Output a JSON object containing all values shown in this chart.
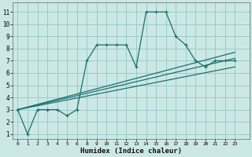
{
  "xlabel": "Humidex (Indice chaleur)",
  "bg_color": "#cce8e5",
  "grid_color": "#99cccc",
  "line_color": "#1a7070",
  "ytick_vals": [
    1,
    2,
    3,
    4,
    5,
    6,
    7,
    8,
    9,
    10,
    11
  ],
  "ylim": [
    0.6,
    11.8
  ],
  "xlim": [
    -0.5,
    23.5
  ],
  "n_xticks": 23,
  "xtick_positions": [
    0,
    1,
    2,
    3,
    4,
    5,
    6,
    7,
    8,
    9,
    10,
    11,
    12,
    13,
    14,
    15,
    16,
    17,
    18,
    19,
    20,
    21,
    22
  ],
  "xtick_labels": [
    "0",
    "1",
    "2",
    "3",
    "4",
    "5",
    "6",
    "8",
    "9",
    "10",
    "11",
    "12",
    "13",
    "14",
    "15",
    "16",
    "17",
    "18",
    "19",
    "20",
    "21",
    "22",
    "23"
  ],
  "main_x": [
    0,
    1,
    2,
    3,
    4,
    5,
    6,
    8,
    9,
    10,
    11,
    12,
    13,
    14,
    15,
    16,
    17,
    18,
    19,
    20,
    21,
    22,
    23
  ],
  "main_xi": [
    0,
    1,
    2,
    3,
    4,
    5,
    6,
    7,
    8,
    9,
    10,
    11,
    12,
    13,
    14,
    15,
    16,
    17,
    18,
    19,
    20,
    21,
    22
  ],
  "main_y": [
    3,
    1,
    3,
    3,
    3,
    2.5,
    3,
    7,
    8.3,
    8.3,
    8.3,
    8.3,
    6.5,
    11,
    11,
    11,
    9,
    8.3,
    7,
    6.5,
    7,
    7,
    7
  ],
  "trend_lines": [
    {
      "xi": [
        0,
        22
      ],
      "y": [
        3.0,
        7.2
      ]
    },
    {
      "xi": [
        0,
        22
      ],
      "y": [
        3.0,
        6.5
      ]
    },
    {
      "xi": [
        0,
        22
      ],
      "y": [
        3.0,
        7.7
      ]
    }
  ]
}
